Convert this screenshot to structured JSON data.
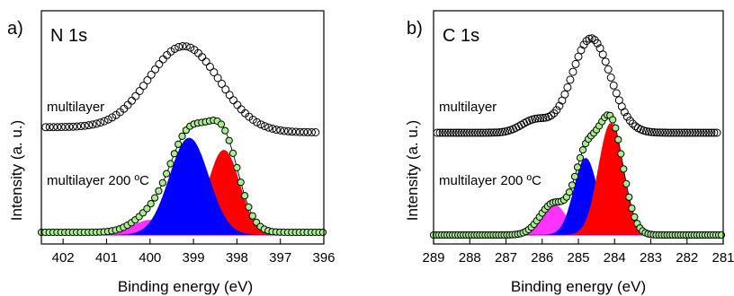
{
  "chart_data": [
    {
      "type": "line",
      "panel_label": "a)",
      "title": "N 1s",
      "xlabel": "Binding energy (eV)",
      "ylabel": "Intensity (a. u.)",
      "x_reversed": true,
      "xlim": [
        402.5,
        396
      ],
      "xticks": [
        "402",
        "401",
        "400",
        "399",
        "398",
        "397",
        "396"
      ],
      "y_ticks_shown": false,
      "annotations": [
        "multilayer",
        "multilayer 200 ºC"
      ],
      "colors": {
        "component_high": "#0000ff",
        "component_low": "#ff0000",
        "component_minor": "#ff33ff",
        "fit_marker": "#a6f08c"
      },
      "series": [
        {
          "name": "multilayer",
          "kind": "open-circles",
          "offset": 0.55,
          "components": [
            {
              "center": 399.2,
              "fwhm": 1.9,
              "amp": 0.8
            }
          ],
          "background": 0.08,
          "step": 0.5,
          "step_center": 399.3
        },
        {
          "name": "multilayer 200 ºC",
          "kind": "green-circles",
          "offset": 0.0,
          "components": [
            {
              "center": 399.1,
              "fwhm": 1.05,
              "amp": 0.72,
              "color": "#0000ff"
            },
            {
              "center": 398.3,
              "fwhm": 0.85,
              "amp": 0.63,
              "color": "#ff0000"
            },
            {
              "center": 400.0,
              "fwhm": 0.95,
              "amp": 0.11,
              "color": "#ff33ff"
            }
          ],
          "background": 0.02
        }
      ]
    },
    {
      "type": "line",
      "panel_label": "b)",
      "title": "C 1s",
      "xlabel": "Binding energy (eV)",
      "ylabel": "Intensity (a. u.)",
      "x_reversed": true,
      "xlim": [
        289,
        281
      ],
      "xticks": [
        "289",
        "288",
        "287",
        "286",
        "285",
        "284",
        "283",
        "282",
        "281"
      ],
      "y_ticks_shown": false,
      "annotations": [
        "multilayer",
        "multilayer 200 ºC"
      ],
      "colors": {
        "component_high": "#0000ff",
        "component_low": "#ff0000",
        "component_minor": "#ff33ff",
        "fit_marker": "#a6f08c"
      },
      "series": [
        {
          "name": "multilayer",
          "kind": "open-circles",
          "offset": 0.55,
          "components": [
            {
              "center": 284.65,
              "fwhm": 1.25,
              "amp": 0.9
            },
            {
              "center": 286.2,
              "fwhm": 0.9,
              "amp": 0.12
            }
          ],
          "background": 0.0
        },
        {
          "name": "multilayer 200 ºC",
          "kind": "green-circles",
          "offset": 0.0,
          "components": [
            {
              "center": 284.1,
              "fwhm": 0.8,
              "amp": 0.83,
              "color": "#ff0000"
            },
            {
              "center": 284.8,
              "fwhm": 0.75,
              "amp": 0.57,
              "color": "#0000ff"
            },
            {
              "center": 285.7,
              "fwhm": 0.85,
              "amp": 0.23,
              "color": "#ff33ff"
            }
          ],
          "background": 0.0
        }
      ]
    }
  ]
}
